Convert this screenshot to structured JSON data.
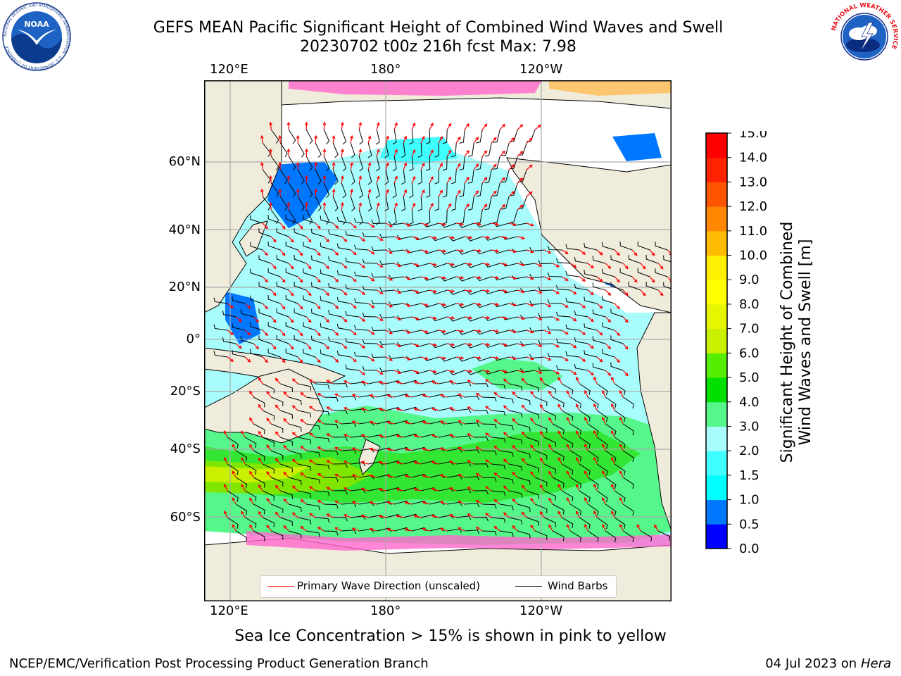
{
  "header": {
    "title_line1": "GEFS MEAN Pacific Significant Height of Combined Wind Waves and Swell",
    "title_line2": "20230702 t00z 216h fcst   Max: 7.98",
    "noaa_logo_text": "NOAA",
    "noaa_ring_text": "NATIONAL OCEANIC AND ATMOSPHERIC ADMINISTRATION · U.S. DEPARTMENT OF COMMERCE",
    "nws_ring_text": "NATIONAL WEATHER SERVICE"
  },
  "map": {
    "lon_labels_top": [
      "120°E",
      "180°",
      "120°W"
    ],
    "lon_labels_bottom": [
      "120°E",
      "180°",
      "120°W"
    ],
    "lat_labels": [
      "60°N",
      "40°N",
      "20°N",
      "0°",
      "20°S",
      "40°S",
      "60°S"
    ],
    "land_color": "#efecdc",
    "ocean_color": "#a8fcfc",
    "ice_colors": [
      "#ff66cc",
      "#ffbb55",
      "#ffee66"
    ]
  },
  "legend": {
    "wave_direction_label": "Primary Wave Direction (unscaled)",
    "wave_direction_color": "#ff0000",
    "wind_barbs_label": "Wind Barbs",
    "wind_barbs_color": "#000000"
  },
  "colorbar": {
    "label_line1": "Significant Height of Combined",
    "label_line2": "Wind Waves and Swell [m]",
    "ticks": [
      "0.0",
      "0.5",
      "1.0",
      "1.5",
      "2.0",
      "3.0",
      "4.0",
      "5.0",
      "6.0",
      "7.0",
      "8.0",
      "9.0",
      "10.0",
      "11.0",
      "12.0",
      "13.0",
      "14.0",
      "15.0"
    ],
    "colors": [
      "#0000ff",
      "#0077ff",
      "#00ffff",
      "#40ffff",
      "#a8fcfc",
      "#55f78a",
      "#00e000",
      "#55ee00",
      "#c8f000",
      "#e6f600",
      "#ffff00",
      "#ffef00",
      "#ffbb00",
      "#ff8800",
      "#ff5500",
      "#ff2200",
      "#ff0000"
    ]
  },
  "footer": {
    "ice_note": "Sea Ice Concentration > 15% is shown in pink to yellow",
    "credit": "NCEP/EMC/Verification Post Processing Product Generation Branch",
    "run_date": "04 Jul 2023 on ",
    "machine": "Hera"
  }
}
